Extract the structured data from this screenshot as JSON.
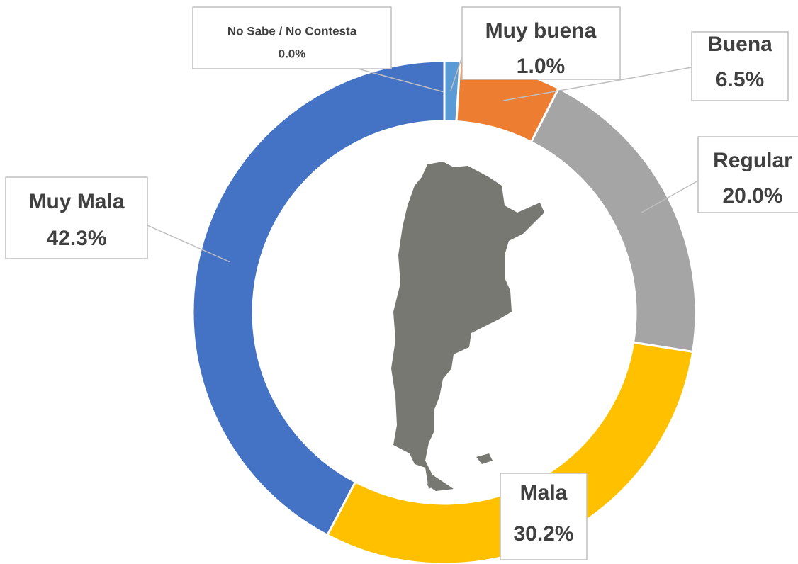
{
  "chart_data": {
    "type": "donut",
    "categories": [
      "Muy buena",
      "Buena",
      "Regular",
      "Mala",
      "Muy Mala",
      "No Sabe / No Contesta"
    ],
    "values": [
      1.0,
      6.5,
      20.0,
      30.2,
      42.3,
      0.0
    ],
    "value_labels": [
      "1.0%",
      "6.5%",
      "20.0%",
      "30.2%",
      "42.3%",
      "0.0%"
    ],
    "colors": [
      "#5b9bd5",
      "#ed7d31",
      "#a5a5a5",
      "#ffc000",
      "#4472c4",
      "#264478"
    ]
  }
}
